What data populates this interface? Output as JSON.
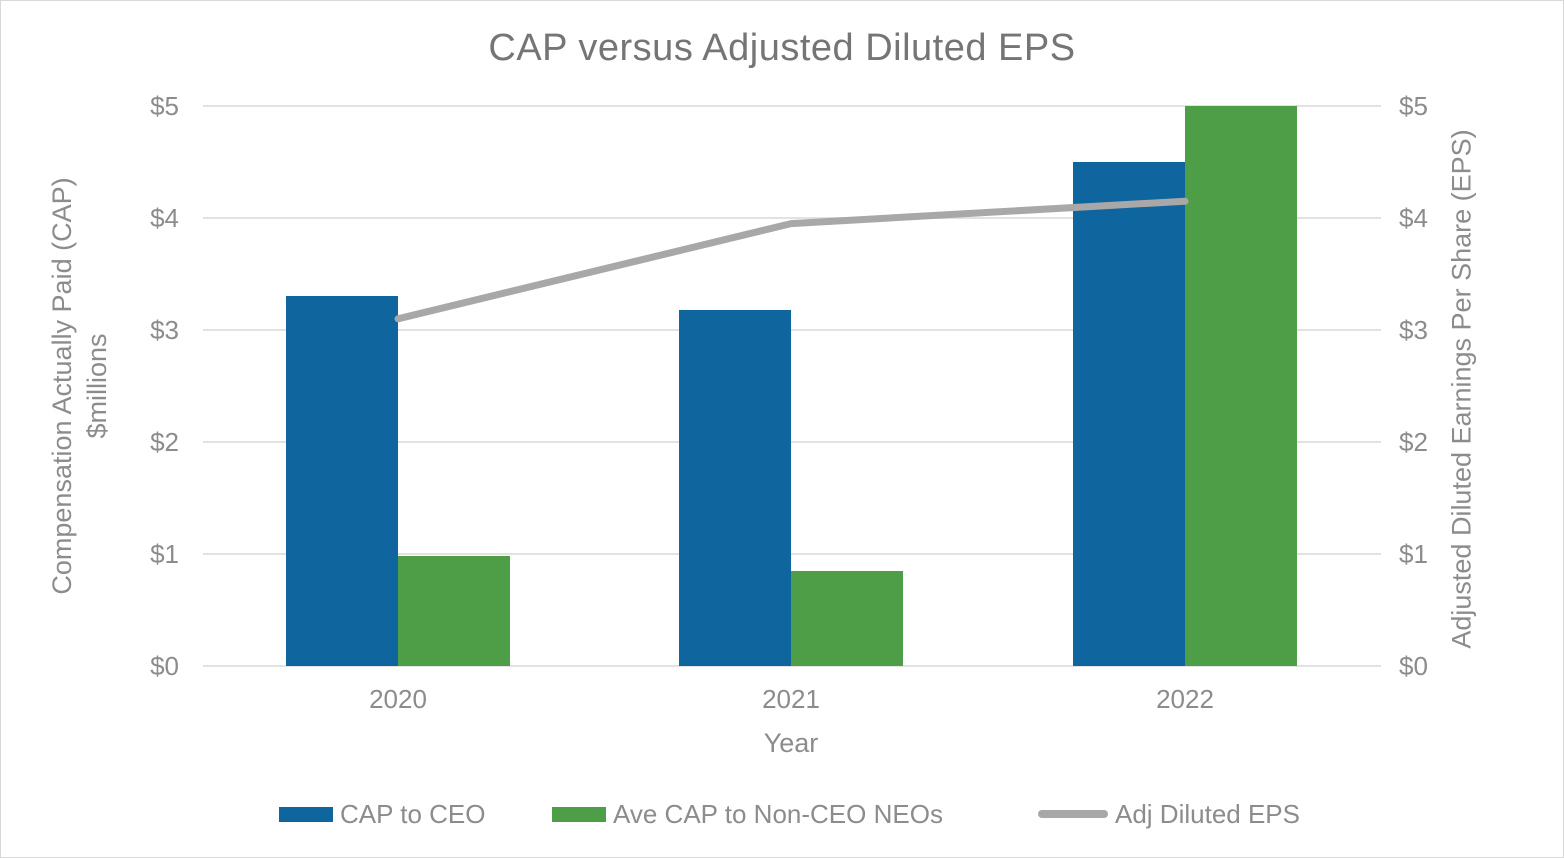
{
  "chart_data": {
    "type": "combo (grouped bar + line, dual y-axes)",
    "title": "CAP versus Adjusted Diluted EPS",
    "categories": [
      "2020",
      "2021",
      "2022"
    ],
    "xlabel": "Year",
    "series": [
      {
        "name": "CAP to CEO",
        "type": "bar",
        "axis": "left",
        "color": "#0f659e",
        "values": [
          3.3,
          3.18,
          4.5
        ]
      },
      {
        "name": "Ave CAP to Non-CEO NEOs",
        "type": "bar",
        "axis": "left",
        "color": "#4d9e46",
        "values": [
          0.98,
          0.85,
          5.0
        ]
      },
      {
        "name": "Adj Diluted EPS",
        "type": "line",
        "axis": "right",
        "color": "#a8a8a8",
        "values": [
          3.1,
          3.95,
          4.15
        ]
      }
    ],
    "left_axis": {
      "title": "Compensation Actually Paid (CAP)",
      "subtitle": "$millions",
      "ticks": [
        "$5",
        "$4",
        "$3",
        "$2",
        "$1",
        "$0"
      ],
      "min": 0,
      "max": 5
    },
    "right_axis": {
      "title": "Adjusted Diluted Earnings Per Share (EPS)",
      "ticks": [
        "$5",
        "$4",
        "$3",
        "$2",
        "$1",
        "$0"
      ],
      "min": 0,
      "max": 5
    },
    "grid": true,
    "legend_position": "bottom",
    "colors": {
      "gridline": "#e2e2e2",
      "tick_text": "#8c8c8c",
      "title_text": "#757575",
      "background": "#ffffff",
      "border": "#d9d9d9"
    }
  }
}
